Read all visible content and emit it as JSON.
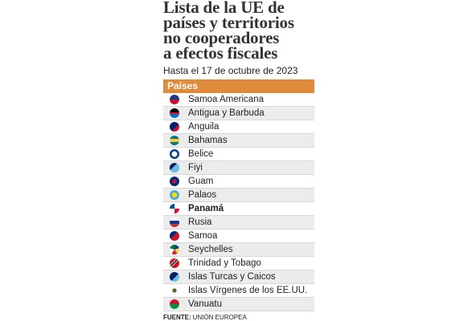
{
  "header": {
    "title_lines": [
      "Lista de la UE de",
      "países y territorios",
      "no cooperadores",
      "a efectos fiscales"
    ],
    "subtitle": "Hasta el 17 de octubre de 2023"
  },
  "table": {
    "column": "Países",
    "rows": [
      "Samoa Americana",
      "Antigua y Barbuda",
      "Anguila",
      "Bahamas",
      "Belice",
      "Fiyi",
      "Guam",
      "Palaos",
      "Panamá",
      "Rusia",
      "Samoa",
      "Seychelles",
      "Trinidad y Tobago",
      "Islas Turcas y Caicos",
      "Islas Vírgenes de los EE.UU.",
      "Vanuatu"
    ]
  },
  "source": {
    "label": "FUENTE:",
    "text": "UNIÓN EUROPEA"
  }
}
